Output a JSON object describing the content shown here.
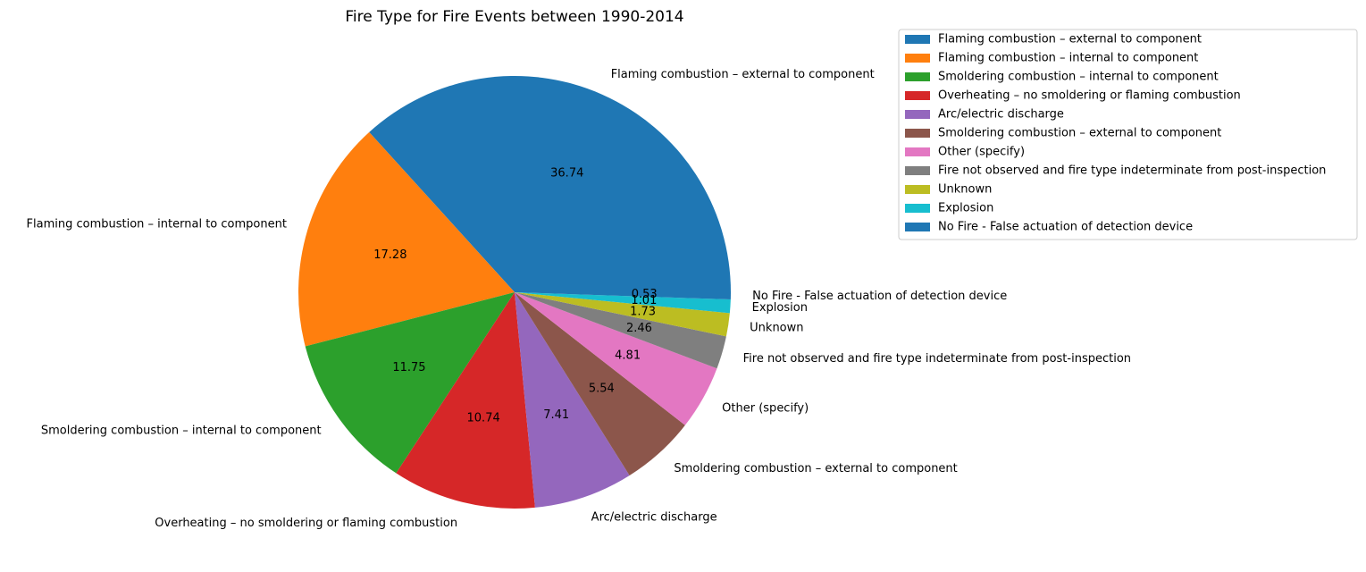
{
  "chart_data": {
    "type": "pie",
    "title": "Fire Type for Fire Events between 1990-2014",
    "slices": [
      {
        "label": "Flaming combustion – external to component",
        "value": 36.74,
        "pct_label": "36.74",
        "color": "#1f77b4"
      },
      {
        "label": "Flaming combustion – internal to component",
        "value": 17.28,
        "pct_label": "17.28",
        "color": "#ff7f0e"
      },
      {
        "label": "Smoldering combustion – internal to component",
        "value": 11.75,
        "pct_label": "11.75",
        "color": "#2ca02c"
      },
      {
        "label": "Overheating – no smoldering or flaming combustion",
        "value": 10.74,
        "pct_label": "10.74",
        "color": "#d62728"
      },
      {
        "label": "Arc/electric discharge",
        "value": 7.41,
        "pct_label": "7.41",
        "color": "#9467bd"
      },
      {
        "label": "Smoldering combustion – external to component",
        "value": 5.54,
        "pct_label": "5.54",
        "color": "#8c564b"
      },
      {
        "label": "Other (specify)",
        "value": 4.81,
        "pct_label": "4.81",
        "color": "#e377c2"
      },
      {
        "label": "Fire not observed and fire type indeterminate from post-inspection",
        "value": 2.46,
        "pct_label": "2.46",
        "color": "#7f7f7f"
      },
      {
        "label": "Unknown",
        "value": 1.73,
        "pct_label": "1.73",
        "color": "#bcbd22"
      },
      {
        "label": "Explosion",
        "value": 1.01,
        "pct_label": "1.01",
        "color": "#17becf"
      },
      {
        "label": "No Fire - False actuation of detection device",
        "value": 0.53,
        "pct_label": "0.53",
        "color": "#1f77b4"
      }
    ],
    "legend_position": "upper-right, outside plot",
    "start_angle_deg": 0,
    "direction": "counterclockwise"
  }
}
